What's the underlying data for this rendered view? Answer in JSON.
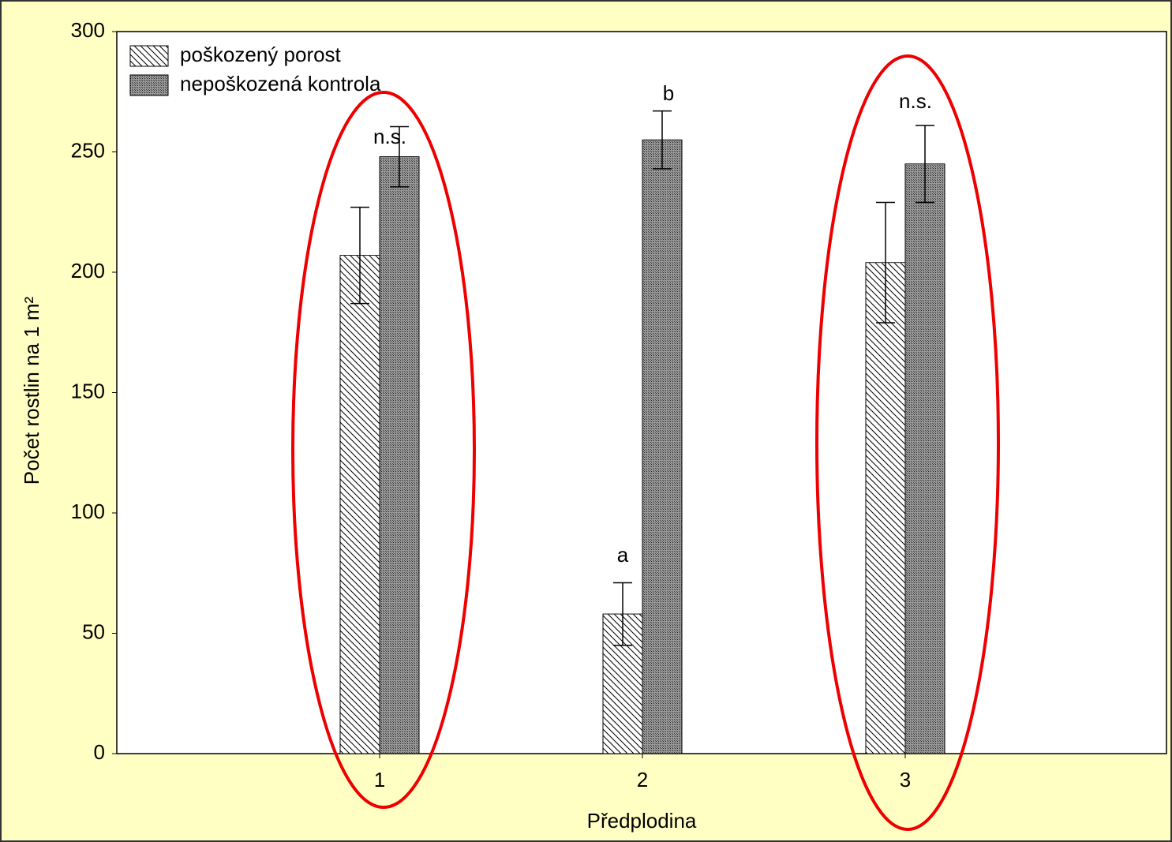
{
  "chart_data": {
    "type": "bar",
    "xlabel": "Předplodina",
    "ylabel": "Počet rostlin na 1 m²",
    "categories": [
      "1",
      "2",
      "3"
    ],
    "series": [
      {
        "name": "poškozený porost",
        "color": "#ffffff",
        "values": [
          207,
          58,
          204
        ],
        "errors": [
          20,
          13,
          25
        ]
      },
      {
        "name": "nepoškozená kontrola",
        "color": "#8c8c8c",
        "values": [
          248,
          255,
          245
        ],
        "errors": [
          12.5,
          12,
          16
        ]
      }
    ],
    "annotations": [
      "n.s.",
      "a",
      "b",
      "n.s."
    ],
    "ylim": [
      0,
      300
    ],
    "yticks": [
      0,
      50,
      100,
      150,
      200,
      250,
      300
    ],
    "legend": "upper left"
  }
}
